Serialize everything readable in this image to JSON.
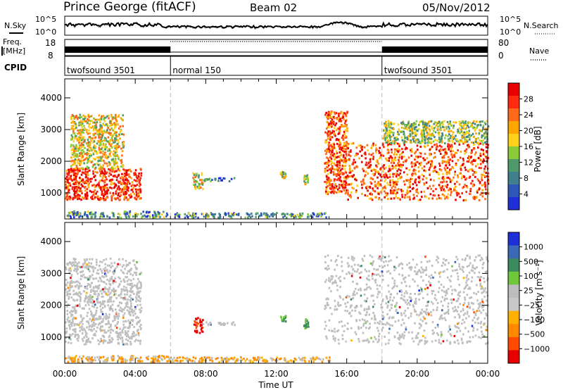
{
  "header": {
    "station": "Prince George (fitACF)",
    "beam": "Beam 02",
    "date": "05/Nov/2012"
  },
  "strip_labels": {
    "nsky": "N.Sky",
    "nsearch": "N.Search",
    "freq_line1": "Freq.",
    "freq_line2": "[MHz]",
    "nave": "Nave",
    "cpid": "CPID",
    "noise_ticks": [
      "10^5",
      "10^0"
    ],
    "freq_ticks": [
      "18",
      "8"
    ],
    "nave_ticks": [
      "80",
      "0"
    ]
  },
  "cpid_segments": [
    {
      "name": "twofsound 3501",
      "start_hour": 0,
      "end_hour": 6
    },
    {
      "name": "normal 150",
      "start_hour": 6,
      "end_hour": 18
    },
    {
      "name": "twofsound 3501",
      "start_hour": 18,
      "end_hour": 24
    }
  ],
  "colors": {
    "power_scale": [
      "#1f2fd8",
      "#2e55b8",
      "#3f7f8e",
      "#4f9a6a",
      "#8bcb3a",
      "#ffd11a",
      "#ffa500",
      "#ff6a1a",
      "#ff2a10",
      "#e80000"
    ],
    "velocity_scale": [
      "#1f2fd8",
      "#3a6ab7",
      "#3a8b5d",
      "#6ec83a",
      "#bdbdbd",
      "#c8c8c8",
      "#ffb000",
      "#ff8a00",
      "#ff4a00",
      "#e80000"
    ],
    "ground_scatter": "#bfbfbf",
    "day_divider": "#bbbbbb"
  },
  "chart_data": [
    {
      "type": "heatmap",
      "parameter": "power",
      "xlabel": "",
      "ylabel": "Slant Range [km]",
      "x_unit": "UT hours",
      "xlim": [
        0,
        24
      ],
      "ylim": [
        180,
        4600
      ],
      "yticks": [
        1000,
        2000,
        3000,
        4000
      ],
      "colorbar": {
        "label": "Power [dB]",
        "ticks": [
          "4",
          "8",
          "12",
          "16",
          "20",
          "24",
          "28"
        ],
        "range": [
          0,
          30
        ]
      },
      "scatter_regions": [
        {
          "x": [
            0.0,
            4.3
          ],
          "y": [
            800,
            1800
          ],
          "level": 0.88
        },
        {
          "x": [
            0.3,
            3.3
          ],
          "y": [
            1800,
            3500
          ],
          "level": 0.55
        },
        {
          "x": [
            0.0,
            5.8
          ],
          "y": [
            250,
            450
          ],
          "level": 0.3
        },
        {
          "x": [
            6.0,
            15.0
          ],
          "y": [
            250,
            400
          ],
          "level": 0.3
        },
        {
          "x": [
            7.2,
            7.8
          ],
          "y": [
            1150,
            1700
          ],
          "level": 0.55
        },
        {
          "x": [
            7.8,
            9.6
          ],
          "y": [
            1400,
            1500
          ],
          "level": 0.2
        },
        {
          "x": [
            12.2,
            12.5
          ],
          "y": [
            1500,
            1700
          ],
          "level": 0.45
        },
        {
          "x": [
            13.5,
            13.8
          ],
          "y": [
            1300,
            1600
          ],
          "level": 0.45
        },
        {
          "x": [
            14.7,
            16.0
          ],
          "y": [
            1000,
            3600
          ],
          "level": 0.8
        },
        {
          "x": [
            16.0,
            24.0
          ],
          "y": [
            800,
            2600
          ],
          "level": 0.8
        },
        {
          "x": [
            18.0,
            24.0
          ],
          "y": [
            2600,
            3300
          ],
          "level": 0.45
        }
      ]
    },
    {
      "type": "heatmap",
      "parameter": "velocity",
      "xlabel": "Time UT",
      "ylabel": "Slant Range [km]",
      "x_unit": "UT hours",
      "xlim": [
        0,
        24
      ],
      "ylim": [
        180,
        4600
      ],
      "xticks": [
        "00:00",
        "04:00",
        "08:00",
        "12:00",
        "16:00",
        "20:00",
        "00:00"
      ],
      "yticks": [
        1000,
        2000,
        3000,
        4000
      ],
      "colorbar": {
        "label": "Velocity [m s⁻¹]",
        "ticks": [
          "1000",
          "500",
          "100",
          "25",
          "−25",
          "−100",
          "−500",
          "−1000"
        ],
        "range": [
          -1000,
          1000
        ]
      },
      "scatter_regions": [
        {
          "x": [
            0.0,
            4.3
          ],
          "y": [
            800,
            3500
          ],
          "kind": "ground"
        },
        {
          "x": [
            0.0,
            6.0
          ],
          "y": [
            250,
            450
          ],
          "kind": "low_velocity"
        },
        {
          "x": [
            6.0,
            15.0
          ],
          "y": [
            250,
            400
          ],
          "kind": "low_velocity"
        },
        {
          "x": [
            7.3,
            7.8
          ],
          "y": [
            1150,
            1700
          ],
          "value": -900
        },
        {
          "x": [
            7.8,
            9.6
          ],
          "y": [
            1400,
            1500
          ],
          "kind": "ground"
        },
        {
          "x": [
            12.2,
            12.5
          ],
          "y": [
            1500,
            1700
          ],
          "value": 300
        },
        {
          "x": [
            13.5,
            13.8
          ],
          "y": [
            1300,
            1600
          ],
          "value": 300
        },
        {
          "x": [
            14.7,
            24.0
          ],
          "y": [
            800,
            3600
          ],
          "kind": "ground"
        }
      ]
    }
  ]
}
